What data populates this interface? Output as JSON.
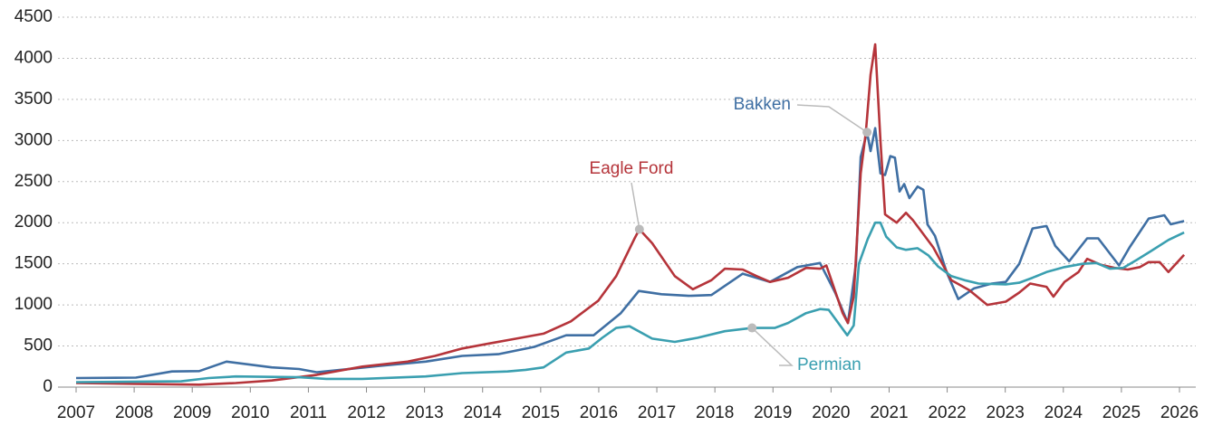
{
  "chart_data": {
    "type": "line",
    "xlim": [
      2007,
      2026
    ],
    "xticks": [
      2007,
      2008,
      2009,
      2010,
      2011,
      2012,
      2013,
      2014,
      2015,
      2016,
      2017,
      2018,
      2019,
      2020,
      2021,
      2022,
      2023,
      2024,
      2025,
      2026
    ],
    "ylim": [
      0,
      4500
    ],
    "yticks": [
      0,
      500,
      1000,
      1500,
      2000,
      2500,
      3000,
      3500,
      4000,
      4500
    ],
    "grid": true,
    "series": [
      {
        "name": "Bakken",
        "color": "#3f6fa3",
        "x": [
          2007.0,
          2008.03,
          2008.65,
          2009.12,
          2009.59,
          2010.37,
          2010.84,
          2011.15,
          2012.24,
          2013.02,
          2013.65,
          2014.27,
          2014.89,
          2015.44,
          2015.91,
          2016.38,
          2016.69,
          2017.08,
          2017.55,
          2017.94,
          2018.48,
          2018.95,
          2019.42,
          2019.81,
          2020.07,
          2020.29,
          2020.43,
          2020.51,
          2020.62,
          2020.68,
          2020.76,
          2020.85,
          2020.93,
          2021.02,
          2021.1,
          2021.18,
          2021.26,
          2021.35,
          2021.49,
          2021.59,
          2021.66,
          2021.79,
          2021.99,
          2022.19,
          2022.46,
          2022.77,
          2023.01,
          2023.24,
          2023.47,
          2023.71,
          2023.86,
          2024.1,
          2024.41,
          2024.6,
          2024.96,
          2025.14,
          2025.47,
          2025.74,
          2025.85,
          2026.08
        ],
        "values": [
          110,
          115,
          190,
          195,
          310,
          240,
          220,
          180,
          260,
          310,
          380,
          400,
          490,
          630,
          630,
          900,
          1170,
          1130,
          1110,
          1120,
          1380,
          1280,
          1460,
          1510,
          1150,
          780,
          1500,
          2800,
          3100,
          2870,
          3150,
          2600,
          2580,
          2810,
          2790,
          2380,
          2470,
          2300,
          2440,
          2400,
          1980,
          1840,
          1400,
          1070,
          1200,
          1260,
          1280,
          1500,
          1930,
          1960,
          1720,
          1530,
          1810,
          1810,
          1480,
          1700,
          2050,
          2090,
          1980,
          2020
        ]
      },
      {
        "name": "Eagle Ford",
        "color": "#b5343a",
        "x": [
          2007.0,
          2008.03,
          2009.12,
          2009.75,
          2010.37,
          2011.15,
          2011.93,
          2012.71,
          2013.18,
          2013.65,
          2014.11,
          2014.58,
          2015.05,
          2015.52,
          2015.99,
          2016.3,
          2016.61,
          2016.7,
          2016.92,
          2017.31,
          2017.62,
          2017.94,
          2018.17,
          2018.48,
          2018.72,
          2018.95,
          2019.26,
          2019.57,
          2019.81,
          2019.92,
          2020.2,
          2020.29,
          2020.39,
          2020.51,
          2020.6,
          2020.68,
          2020.76,
          2020.85,
          2020.93,
          2021.13,
          2021.29,
          2021.41,
          2021.57,
          2021.76,
          2022.07,
          2022.38,
          2022.69,
          2023.01,
          2023.24,
          2023.43,
          2023.71,
          2023.83,
          2024.02,
          2024.26,
          2024.41,
          2024.64,
          2024.88,
          2025.11,
          2025.32,
          2025.47,
          2025.66,
          2025.81,
          2026.08
        ],
        "values": [
          50,
          40,
          30,
          50,
          80,
          150,
          250,
          310,
          380,
          470,
          530,
          590,
          650,
          800,
          1050,
          1350,
          1800,
          1920,
          1750,
          1350,
          1190,
          1300,
          1440,
          1430,
          1350,
          1280,
          1330,
          1450,
          1440,
          1480,
          900,
          780,
          1100,
          2600,
          3100,
          3800,
          4170,
          3000,
          2100,
          2000,
          2120,
          2030,
          1880,
          1700,
          1300,
          1180,
          1000,
          1040,
          1150,
          1260,
          1220,
          1100,
          1280,
          1400,
          1560,
          1490,
          1450,
          1430,
          1460,
          1520,
          1520,
          1400,
          1610
        ]
      },
      {
        "name": "Permian",
        "color": "#3a9fb0",
        "x": [
          2007.0,
          2008.81,
          2009.28,
          2009.75,
          2010.84,
          2011.31,
          2011.93,
          2013.02,
          2013.65,
          2014.43,
          2014.74,
          2015.05,
          2015.44,
          2015.83,
          2016.06,
          2016.3,
          2016.53,
          2016.92,
          2017.31,
          2017.7,
          2018.17,
          2018.64,
          2019.03,
          2019.26,
          2019.57,
          2019.81,
          2019.96,
          2020.28,
          2020.39,
          2020.48,
          2020.63,
          2020.76,
          2020.85,
          2020.95,
          2021.13,
          2021.29,
          2021.49,
          2021.68,
          2021.84,
          2022.07,
          2022.3,
          2022.54,
          2023.01,
          2023.24,
          2023.47,
          2023.71,
          2024.02,
          2024.33,
          2024.57,
          2024.8,
          2025.03,
          2025.27,
          2025.5,
          2025.81,
          2026.08
        ],
        "values": [
          60,
          70,
          110,
          130,
          120,
          100,
          100,
          130,
          170,
          190,
          210,
          240,
          420,
          470,
          600,
          720,
          740,
          590,
          550,
          600,
          680,
          720,
          720,
          780,
          900,
          950,
          940,
          630,
          750,
          1500,
          1800,
          2000,
          2000,
          1830,
          1700,
          1670,
          1690,
          1600,
          1470,
          1350,
          1300,
          1260,
          1250,
          1270,
          1330,
          1400,
          1460,
          1500,
          1510,
          1440,
          1450,
          1550,
          1650,
          1790,
          1880
        ]
      }
    ]
  }
}
